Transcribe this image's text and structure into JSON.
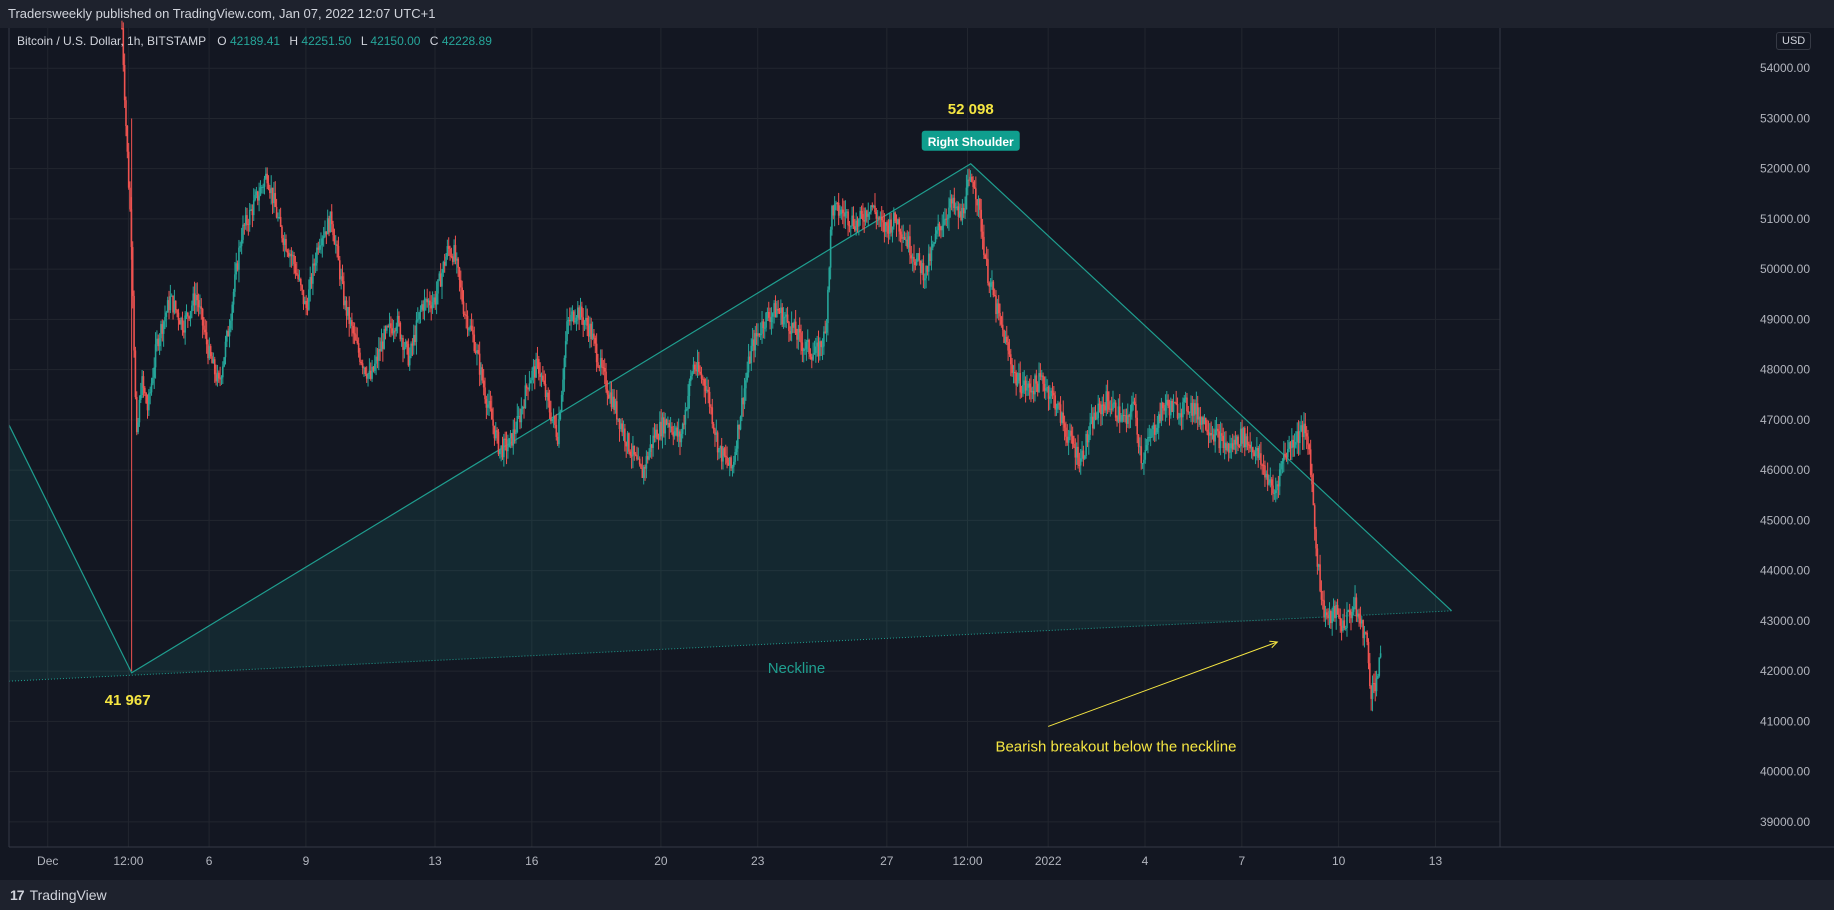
{
  "header": {
    "published": "Tradersweekly published on TradingView.com, Jan 07, 2022 12:07 UTC+1"
  },
  "legend": {
    "symbol": "Bitcoin / U.S. Dollar, 1h, BITSTAMP",
    "o_label": "O",
    "o_value": "42189.41",
    "h_label": "H",
    "h_value": "42251.50",
    "l_label": "L",
    "l_value": "42150.00",
    "c_label": "C",
    "c_value": "42228.89"
  },
  "currency": "USD",
  "footer": {
    "brand": "TradingView",
    "logo_text": "17"
  },
  "colors": {
    "background": "#131722",
    "grid": "#22262f",
    "up": "#26a69a",
    "down": "#ef5350",
    "pattern_line": "#1f9e8f",
    "annotation_yellow": "#f5e642",
    "badge_bg": "#0f9e8e"
  },
  "chart_data": {
    "type": "candlestick",
    "title": "Bitcoin / U.S. Dollar, 1h, BITSTAMP",
    "xlabel": "",
    "ylabel": "",
    "ylim": [
      38500,
      54800
    ],
    "y_ticks": [
      39000,
      40000,
      41000,
      42000,
      43000,
      44000,
      45000,
      46000,
      47000,
      48000,
      49000,
      50000,
      51000,
      52000,
      53000,
      54000
    ],
    "y_tick_labels": [
      "39000.00",
      "40000.00",
      "41000.00",
      "42000.00",
      "43000.00",
      "44000.00",
      "45000.00",
      "46000.00",
      "47000.00",
      "48000.00",
      "49000.00",
      "50000.00",
      "51000.00",
      "52000.00",
      "53000.00",
      "54000.00"
    ],
    "x_ticks": [
      {
        "label": "Dec",
        "day": 0
      },
      {
        "label": "12:00",
        "day": 2.5
      },
      {
        "label": "6",
        "day": 5
      },
      {
        "label": "9",
        "day": 8
      },
      {
        "label": "13",
        "day": 12
      },
      {
        "label": "16",
        "day": 15
      },
      {
        "label": "20",
        "day": 19
      },
      {
        "label": "23",
        "day": 22
      },
      {
        "label": "27",
        "day": 26
      },
      {
        "label": "12:00",
        "day": 28.5
      },
      {
        "label": "2022",
        "day": 31
      },
      {
        "label": "4",
        "day": 34
      },
      {
        "label": "7",
        "day": 37
      },
      {
        "label": "10",
        "day": 40
      },
      {
        "label": "13",
        "day": 43
      }
    ],
    "x_range_days": [
      -1.2,
      45
    ],
    "grid": true,
    "price_path": [
      [
        2.3,
        54800
      ],
      [
        2.45,
        52500
      ],
      [
        2.6,
        50500
      ],
      [
        2.75,
        46500
      ],
      [
        2.9,
        47800
      ],
      [
        3.1,
        47200
      ],
      [
        3.4,
        48600
      ],
      [
        3.8,
        49400
      ],
      [
        4.2,
        48900
      ],
      [
        4.6,
        49500
      ],
      [
        5.0,
        48300
      ],
      [
        5.3,
        47700
      ],
      [
        5.6,
        48800
      ],
      [
        6.0,
        50700
      ],
      [
        6.4,
        51300
      ],
      [
        6.8,
        51900
      ],
      [
        7.2,
        50800
      ],
      [
        7.6,
        50200
      ],
      [
        8.0,
        49200
      ],
      [
        8.4,
        50600
      ],
      [
        8.8,
        51000
      ],
      [
        9.2,
        49300
      ],
      [
        9.6,
        48400
      ],
      [
        10.0,
        47800
      ],
      [
        10.4,
        48600
      ],
      [
        10.8,
        49000
      ],
      [
        11.2,
        48200
      ],
      [
        11.6,
        49300
      ],
      [
        12.0,
        49400
      ],
      [
        12.4,
        50400
      ],
      [
        12.6,
        50300
      ],
      [
        12.9,
        49200
      ],
      [
        13.2,
        48600
      ],
      [
        13.6,
        47400
      ],
      [
        14.0,
        46400
      ],
      [
        14.3,
        46500
      ],
      [
        14.6,
        47000
      ],
      [
        14.9,
        47800
      ],
      [
        15.2,
        48100
      ],
      [
        15.5,
        47300
      ],
      [
        15.8,
        46700
      ],
      [
        16.1,
        48900
      ],
      [
        16.4,
        49200
      ],
      [
        16.8,
        48800
      ],
      [
        17.2,
        47900
      ],
      [
        17.6,
        47200
      ],
      [
        18.0,
        46500
      ],
      [
        18.4,
        45900
      ],
      [
        18.8,
        46700
      ],
      [
        19.2,
        47000
      ],
      [
        19.6,
        46600
      ],
      [
        20.0,
        48100
      ],
      [
        20.4,
        47700
      ],
      [
        20.8,
        46400
      ],
      [
        21.2,
        46000
      ],
      [
        21.5,
        47300
      ],
      [
        21.8,
        48400
      ],
      [
        22.2,
        49000
      ],
      [
        22.6,
        49200
      ],
      [
        23.0,
        48900
      ],
      [
        23.4,
        48500
      ],
      [
        23.8,
        48300
      ],
      [
        24.1,
        48700
      ],
      [
        24.3,
        51200
      ],
      [
        24.7,
        51100
      ],
      [
        25.1,
        50900
      ],
      [
        25.5,
        51300
      ],
      [
        25.9,
        50800
      ],
      [
        26.3,
        51000
      ],
      [
        26.6,
        50600
      ],
      [
        26.9,
        50200
      ],
      [
        27.2,
        49900
      ],
      [
        27.6,
        50800
      ],
      [
        28.0,
        51300
      ],
      [
        28.3,
        51000
      ],
      [
        28.5,
        51600
      ],
      [
        28.7,
        51800
      ],
      [
        28.9,
        51000
      ],
      [
        29.1,
        50000
      ],
      [
        29.4,
        49200
      ],
      [
        29.7,
        48500
      ],
      [
        30.0,
        47800
      ],
      [
        30.4,
        47600
      ],
      [
        30.8,
        47800
      ],
      [
        31.2,
        47400
      ],
      [
        31.6,
        46700
      ],
      [
        32.0,
        46200
      ],
      [
        32.4,
        47000
      ],
      [
        32.8,
        47400
      ],
      [
        33.2,
        47100
      ],
      [
        33.5,
        46900
      ],
      [
        33.6,
        47500
      ],
      [
        33.9,
        46200
      ],
      [
        34.2,
        46700
      ],
      [
        34.6,
        47300
      ],
      [
        35.0,
        47200
      ],
      [
        35.4,
        47300
      ],
      [
        35.8,
        47000
      ],
      [
        36.2,
        46700
      ],
      [
        36.6,
        46400
      ],
      [
        37.0,
        46700
      ],
      [
        37.4,
        46400
      ],
      [
        37.7,
        46000
      ],
      [
        38.0,
        45500
      ],
      [
        38.3,
        46300
      ],
      [
        38.6,
        46600
      ],
      [
        38.9,
        46800
      ],
      [
        39.1,
        46400
      ],
      [
        39.3,
        44500
      ],
      [
        39.5,
        43300
      ],
      [
        39.7,
        43000
      ],
      [
        39.9,
        43200
      ],
      [
        40.1,
        42900
      ],
      [
        40.3,
        43100
      ],
      [
        40.5,
        43300
      ],
      [
        40.7,
        42900
      ],
      [
        40.85,
        42700
      ],
      [
        41.0,
        41600
      ],
      [
        41.15,
        41800
      ],
      [
        41.3,
        42200
      ]
    ],
    "pattern": {
      "points": [
        [
          -1.2,
          46900
        ],
        [
          2.6,
          41967
        ],
        [
          28.6,
          52098
        ],
        [
          43.5,
          43200
        ]
      ],
      "neckline": [
        [
          -1.2,
          41800
        ],
        [
          43.5,
          43200
        ]
      ]
    },
    "annotations": {
      "head_price": "52 098",
      "base_price": "41 967",
      "badge": "Right Shoulder",
      "neckline_label": "Neckline",
      "breakout_label": "Bearish breakout below the neckline",
      "arrow_from": [
        31.0,
        40900
      ],
      "arrow_to": [
        38.1,
        42580
      ]
    }
  }
}
